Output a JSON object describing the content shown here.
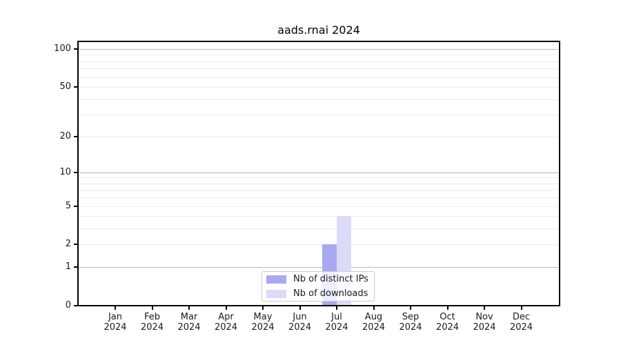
{
  "title": "aads.rnai 2024",
  "colors": {
    "distinct_ips_bar": "#a9a9ef",
    "downloads_bar": "#dbdbf7",
    "grid_minor": "#ececec",
    "grid_major": "#b9b9b9",
    "axis": "#000000",
    "legend_border": "#cccccc"
  },
  "legend": {
    "entries": [
      {
        "label": "Nb of distinct IPs",
        "color": "#a9a9ef"
      },
      {
        "label": "Nb of downloads",
        "color": "#dbdbf7"
      }
    ]
  },
  "chart_data": {
    "type": "bar",
    "title": "aads.rnai 2024",
    "categories": [
      "Jan 2024",
      "Feb 2024",
      "Mar 2024",
      "Apr 2024",
      "May 2024",
      "Jun 2024",
      "Jul 2024",
      "Aug 2024",
      "Sep 2024",
      "Oct 2024",
      "Nov 2024",
      "Dec 2024"
    ],
    "month_line1": [
      "Jan",
      "Feb",
      "Mar",
      "Apr",
      "May",
      "Jun",
      "Jul",
      "Aug",
      "Sep",
      "Oct",
      "Nov",
      "Dec"
    ],
    "month_line2": "2024",
    "series": [
      {
        "name": "Nb of distinct IPs",
        "color": "#a9a9ef",
        "values": [
          0,
          0,
          0,
          0,
          0,
          0,
          2,
          0,
          0,
          0,
          0,
          0
        ]
      },
      {
        "name": "Nb of downloads",
        "color": "#dbdbf7",
        "values": [
          0,
          0,
          0,
          0,
          0,
          0,
          4,
          0,
          0,
          0,
          0,
          0
        ]
      }
    ],
    "xlabel": "",
    "ylabel": "",
    "y_scale": "log10(1+y)",
    "y_ticks": [
      0,
      1,
      2,
      5,
      10,
      20,
      50,
      100
    ],
    "ylim": [
      0,
      116
    ],
    "grid": {
      "minor_values": [
        2,
        3,
        4,
        5,
        6,
        7,
        8,
        9,
        20,
        30,
        40,
        50,
        60,
        70,
        80,
        90
      ],
      "major_values": [
        1,
        10,
        100
      ]
    },
    "legend_position": "lower center",
    "legend_entries": [
      "Nb of distinct IPs",
      "Nb of downloads"
    ]
  }
}
